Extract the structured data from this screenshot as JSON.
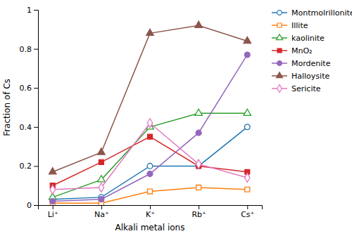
{
  "chart_data": {
    "type": "line",
    "x_label": "Alkali metal ions",
    "y_label": "Fraction of Cs",
    "categories": [
      "Li⁺",
      "Na⁺",
      "K⁺",
      "Rb⁺",
      "Cs⁺"
    ],
    "series": [
      {
        "name": "Montmolrillonite",
        "marker": "circle-open",
        "values": [
          0.03,
          0.04,
          0.2,
          0.2,
          0.4
        ]
      },
      {
        "name": "Illite",
        "marker": "square-open",
        "values": [
          0.01,
          0.01,
          0.07,
          0.09,
          0.08
        ]
      },
      {
        "name": "kaolinite",
        "marker": "triangle-open",
        "values": [
          0.04,
          0.13,
          0.4,
          0.47,
          0.47
        ]
      },
      {
        "name": "MnO₂",
        "marker": "square",
        "values": [
          0.1,
          0.22,
          0.35,
          0.2,
          0.17
        ]
      },
      {
        "name": "Mordenite",
        "marker": "circle",
        "values": [
          0.02,
          0.03,
          0.16,
          0.37,
          0.77
        ]
      },
      {
        "name": "Halloysite",
        "marker": "triangle",
        "values": [
          0.17,
          0.27,
          0.88,
          0.92,
          0.84
        ]
      },
      {
        "name": "Sericite",
        "marker": "diamond-open",
        "values": [
          0.08,
          0.09,
          0.42,
          0.21,
          0.14
        ]
      }
    ],
    "ylim": [
      0,
      1.0
    ],
    "yticks": [
      0,
      0.2,
      0.4,
      0.6,
      0.8,
      1.0
    ],
    "grid": false,
    "legend": "right"
  }
}
